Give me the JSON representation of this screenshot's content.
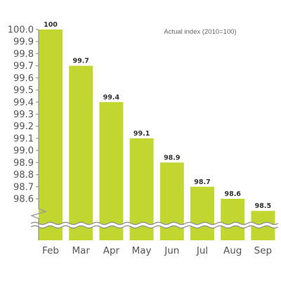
{
  "chart_data": {
    "type": "bar",
    "categories": [
      "Feb",
      "Mar",
      "Apr",
      "May",
      "Jun",
      "Jul",
      "Aug",
      "Sep"
    ],
    "values": [
      100,
      99.7,
      99.4,
      99.1,
      98.9,
      98.7,
      98.6,
      98.5
    ],
    "data_labels": [
      "100",
      "99.7",
      "99.4",
      "99.1",
      "98.9",
      "98.7",
      "98.6",
      "98.5"
    ],
    "yticks": [
      "100.0",
      "99.9",
      "99.8",
      "99.7",
      "99.6",
      "99.5",
      "99.4",
      "99.3",
      "99.2",
      "99.1",
      "99.0",
      "98.9",
      "98.8",
      "98.7",
      "98.6"
    ],
    "ylim": [
      98.6,
      100.0
    ],
    "axis_break": true,
    "annotation": "Actual index (2010=100)",
    "title": "",
    "xlabel": "",
    "ylabel": "",
    "colors": {
      "bar": "#c2d630",
      "axis": "#9a9a9a",
      "text": "#555555",
      "break_line": "#8c8c8c"
    }
  }
}
